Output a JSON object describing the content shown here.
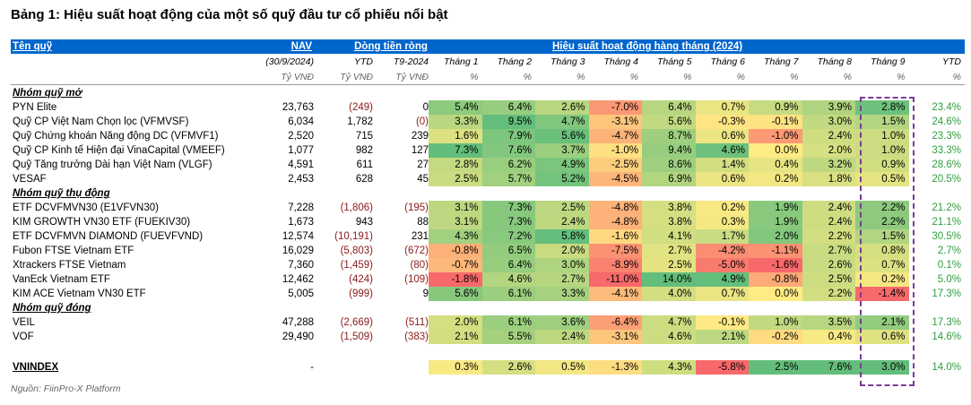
{
  "title": "Bảng 1: Hiệu suất hoạt động của một số quỹ đầu tư cổ phiếu nổi bật",
  "source": "Nguồn: FiinPro-X Platform",
  "header": {
    "fund": "Tên quỹ",
    "nav": "NAV",
    "flow": "Dòng tiền ròng",
    "perf": "Hiệu suất hoạt động hàng tháng (2024)",
    "nav_date": "(30/9/2024)",
    "flow_ytd": "YTD",
    "flow_t9": "T9-2024",
    "months": [
      "Tháng 1",
      "Tháng 2",
      "Tháng 3",
      "Tháng 4",
      "Tháng 5",
      "Tháng 6",
      "Tháng 7",
      "Tháng 8",
      "Tháng 9"
    ],
    "ytd": "YTD",
    "unit_vnd": "Tỷ VNĐ",
    "unit_pct": "%"
  },
  "groups": [
    {
      "name": "Nhóm quỹ mở",
      "rows": [
        {
          "name": "PYN Elite",
          "nav": "23,763",
          "ytd": "(249)",
          "t9": "0",
          "m": [
            "5.4%",
            "6.4%",
            "2.6%",
            "-7.0%",
            "6.4%",
            "0.7%",
            "0.9%",
            "3.9%",
            "2.8%"
          ],
          "ytd_pct": "23.4%"
        },
        {
          "name": "Quỹ CP Việt Nam Chọn lọc (VFMVSF)",
          "nav": "6,034",
          "ytd": "1,782",
          "t9": "(0)",
          "m": [
            "3.3%",
            "9.5%",
            "4.7%",
            "-3.1%",
            "5.6%",
            "-0.3%",
            "-0.1%",
            "3.0%",
            "1.5%"
          ],
          "ytd_pct": "24.6%"
        },
        {
          "name": "Quỹ Chứng khoán Năng động DC (VFMVF1)",
          "nav": "2,520",
          "ytd": "715",
          "t9": "239",
          "m": [
            "1.6%",
            "7.9%",
            "5.6%",
            "-4.7%",
            "8.7%",
            "0.6%",
            "-1.0%",
            "2.4%",
            "1.0%"
          ],
          "ytd_pct": "23.3%"
        },
        {
          "name": "Quỹ CP Kinh tế Hiện đại VinaCapital (VMEEF)",
          "nav": "1,077",
          "ytd": "982",
          "t9": "127",
          "m": [
            "7.3%",
            "7.6%",
            "3.7%",
            "-1.0%",
            "9.4%",
            "4.6%",
            "0.0%",
            "2.0%",
            "1.0%"
          ],
          "ytd_pct": "33.3%"
        },
        {
          "name": "Quỹ Tăng trưởng Dài hạn Việt Nam (VLGF)",
          "nav": "4,591",
          "ytd": "611",
          "t9": "27",
          "m": [
            "2.8%",
            "6.2%",
            "4.9%",
            "-2.5%",
            "8.6%",
            "1.4%",
            "0.4%",
            "3.2%",
            "0.9%"
          ],
          "ytd_pct": "28.6%"
        },
        {
          "name": "VESAF",
          "nav": "2,453",
          "ytd": "628",
          "t9": "45",
          "m": [
            "2.5%",
            "5.7%",
            "5.2%",
            "-4.5%",
            "6.9%",
            "0.6%",
            "0.2%",
            "1.8%",
            "0.5%"
          ],
          "ytd_pct": "20.5%"
        }
      ]
    },
    {
      "name": "Nhóm quỹ thụ động",
      "rows": [
        {
          "name": "ETF DCVFMVN30 (E1VFVN30)",
          "nav": "7,228",
          "ytd": "(1,806)",
          "t9": "(195)",
          "m": [
            "3.1%",
            "7.3%",
            "2.5%",
            "-4.8%",
            "3.8%",
            "0.2%",
            "1.9%",
            "2.4%",
            "2.2%"
          ],
          "ytd_pct": "21.2%"
        },
        {
          "name": "KIM GROWTH VN30 ETF (FUEKIV30)",
          "nav": "1,673",
          "ytd": "943",
          "t9": "88",
          "m": [
            "3.1%",
            "7.3%",
            "2.4%",
            "-4.8%",
            "3.8%",
            "0.3%",
            "1.9%",
            "2.4%",
            "2.2%"
          ],
          "ytd_pct": "21.1%"
        },
        {
          "name": "ETF DCVFMVN DIAMOND (FUEVFVND)",
          "nav": "12,574",
          "ytd": "(10,191)",
          "t9": "231",
          "m": [
            "4.3%",
            "7.2%",
            "5.8%",
            "-1.6%",
            "4.1%",
            "1.7%",
            "2.0%",
            "2.2%",
            "1.5%"
          ],
          "ytd_pct": "30.5%"
        },
        {
          "name": "Fubon FTSE Vietnam ETF",
          "nav": "16,029",
          "ytd": "(5,803)",
          "t9": "(672)",
          "m": [
            "-0.8%",
            "6.5%",
            "2.0%",
            "-7.5%",
            "2.7%",
            "-4.2%",
            "-1.1%",
            "2.7%",
            "0.8%"
          ],
          "ytd_pct": "2.7%"
        },
        {
          "name": "Xtrackers FTSE Vietnam",
          "nav": "7,360",
          "ytd": "(1,459)",
          "t9": "(80)",
          "m": [
            "-0.7%",
            "6.4%",
            "3.0%",
            "-8.9%",
            "2.5%",
            "-5.0%",
            "-1.6%",
            "2.6%",
            "0.7%"
          ],
          "ytd_pct": "0.1%"
        },
        {
          "name": "VanEck Vietnam ETF",
          "nav": "12,462",
          "ytd": "(424)",
          "t9": "(109)",
          "m": [
            "-1.8%",
            "4.6%",
            "2.7%",
            "-11.0%",
            "14.0%",
            "4.9%",
            "-0.8%",
            "2.5%",
            "0.2%"
          ],
          "ytd_pct": "5.0%"
        },
        {
          "name": "KIM ACE Vietnam VN30 ETF",
          "nav": "5,005",
          "ytd": "(999)",
          "t9": "9",
          "m": [
            "5.6%",
            "6.1%",
            "3.3%",
            "-4.1%",
            "4.0%",
            "0.7%",
            "0.0%",
            "2.2%",
            "-1.4%"
          ],
          "ytd_pct": "17.3%"
        }
      ]
    },
    {
      "name": "Nhóm quỹ đóng",
      "rows": [
        {
          "name": "VEIL",
          "nav": "47,288",
          "ytd": "(2,669)",
          "t9": "(511)",
          "m": [
            "2.0%",
            "6.1%",
            "3.6%",
            "-6.4%",
            "4.7%",
            "-0.1%",
            "1.0%",
            "3.5%",
            "2.1%"
          ],
          "ytd_pct": "17.3%"
        },
        {
          "name": "VOF",
          "nav": "29,490",
          "ytd": "(1,509)",
          "t9": "(383)",
          "m": [
            "2.1%",
            "5.5%",
            "2.4%",
            "-3.1%",
            "4.6%",
            "2.1%",
            "-0.2%",
            "0.4%",
            "0.6%"
          ],
          "ytd_pct": "14.6%"
        }
      ]
    }
  ],
  "index": {
    "name": "VNINDEX",
    "nav": "-",
    "m": [
      "0.3%",
      "2.6%",
      "0.5%",
      "-1.3%",
      "4.3%",
      "-5.8%",
      "2.5%",
      "7.6%",
      "3.0%"
    ],
    "ytd_pct": "14.0%"
  }
}
